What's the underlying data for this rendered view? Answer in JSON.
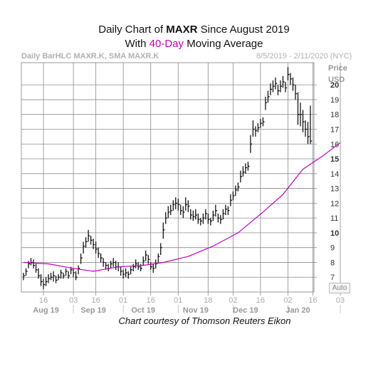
{
  "header": {
    "title_pre": "Daily Chart of ",
    "title_ticker": "MAXR",
    "title_post": " Since August 2019",
    "subtitle_pre": "With ",
    "subtitle_highlight": "40-Day",
    "subtitle_post": " Moving Average",
    "highlight_color": "#c000c0"
  },
  "meta": {
    "left": "Daily BarHLC MAXR.K, SMA MAXR.K",
    "right": "8/5/2019 - 2/11/2020 (NYC)"
  },
  "axis": {
    "price_label": "Price",
    "currency_label": "USD",
    "auto_label": "Auto"
  },
  "credit": "Chart courtesy of Thomson Reuters Eikon",
  "chart_data": {
    "type": "bar",
    "ylim": [
      6,
      21.5
    ],
    "y_ticks": [
      7,
      8,
      9,
      10,
      11,
      12,
      13,
      14,
      15,
      16,
      17,
      18,
      19,
      20
    ],
    "y_bold_ticks": [
      10,
      15,
      20
    ],
    "x_day_ticks": [
      {
        "label": "16",
        "index": 8
      },
      {
        "label": "03",
        "index": 20
      },
      {
        "label": "16",
        "index": 29
      },
      {
        "label": "01",
        "index": 40
      },
      {
        "label": "16",
        "index": 51
      },
      {
        "label": "01",
        "index": 62
      },
      {
        "label": "18",
        "index": 74
      },
      {
        "label": "02",
        "index": 84
      },
      {
        "label": "16",
        "index": 95
      },
      {
        "label": "02",
        "index": 106
      },
      {
        "label": "16",
        "index": 116
      },
      {
        "label": "03",
        "index": 127
      }
    ],
    "x_month_labels": [
      {
        "label": "Aug 19",
        "index": 9
      },
      {
        "label": "Sep 19",
        "index": 28
      },
      {
        "label": "Oct 19",
        "index": 48
      },
      {
        "label": "Nov 19",
        "index": 69
      },
      {
        "label": "Dec 19",
        "index": 89
      },
      {
        "label": "Jan 20",
        "index": 110
      }
    ],
    "month_separators": [
      20,
      40,
      62,
      84,
      106,
      127
    ],
    "series": [
      {
        "name": "MAXR.K",
        "style": "HLC bars",
        "high": [
          7.3,
          7.6,
          8.1,
          8.3,
          8.2,
          7.9,
          7.6,
          7.2,
          6.9,
          7.0,
          7.2,
          7.3,
          7.4,
          7.1,
          7.2,
          7.5,
          7.3,
          7.6,
          7.4,
          7.7,
          7.6,
          7.4,
          7.8,
          8.6,
          9.4,
          9.7,
          10.2,
          9.8,
          9.6,
          9.4,
          9.0,
          8.6,
          8.3,
          8.0,
          7.9,
          8.1,
          8.3,
          8.1,
          8.0,
          7.7,
          7.5,
          7.6,
          7.4,
          7.7,
          7.9,
          8.2,
          8.0,
          7.9,
          8.4,
          8.8,
          8.5,
          8.0,
          7.9,
          8.2,
          8.6,
          9.3,
          10.7,
          11.4,
          11.8,
          11.9,
          12.2,
          12.4,
          12.3,
          11.9,
          11.8,
          12.4,
          12.2,
          11.6,
          11.5,
          11.6,
          11.3,
          11.0,
          11.3,
          11.6,
          11.3,
          11.0,
          11.5,
          11.9,
          11.3,
          11.2,
          11.6,
          11.9,
          11.8,
          12.6,
          12.8,
          13.2,
          13.4,
          14.2,
          14.5,
          14.7,
          14.8,
          16.6,
          17.6,
          17.2,
          17.4,
          17.7,
          17.8,
          19.2,
          19.6,
          20.1,
          20.3,
          20.5,
          20.0,
          20.3,
          20.6,
          20.2,
          21.2,
          20.8,
          20.5,
          20.0,
          19.5,
          18.8,
          18.3,
          17.6,
          17.5,
          18.6
        ],
        "low": [
          6.8,
          7.1,
          7.6,
          7.8,
          7.6,
          7.3,
          6.9,
          6.4,
          6.2,
          6.4,
          6.6,
          6.8,
          6.7,
          6.6,
          6.8,
          6.9,
          6.9,
          7.1,
          6.9,
          7.2,
          7.0,
          6.8,
          7.2,
          7.9,
          8.6,
          9.0,
          9.4,
          9.2,
          8.9,
          8.6,
          8.3,
          8.0,
          7.7,
          7.5,
          7.4,
          7.6,
          7.7,
          7.5,
          7.4,
          7.1,
          6.9,
          7.0,
          6.9,
          7.2,
          7.4,
          7.6,
          7.5,
          7.4,
          7.8,
          8.1,
          7.9,
          7.5,
          7.3,
          7.6,
          8.0,
          8.5,
          9.6,
          10.6,
          11.0,
          11.2,
          11.5,
          11.6,
          11.5,
          11.2,
          11.0,
          11.5,
          11.4,
          10.9,
          10.8,
          10.9,
          10.6,
          10.5,
          10.6,
          10.9,
          10.6,
          10.5,
          10.8,
          11.1,
          10.7,
          10.6,
          10.9,
          11.2,
          11.2,
          11.8,
          12.2,
          12.5,
          12.8,
          13.4,
          13.8,
          14.0,
          14.2,
          15.4,
          16.5,
          16.5,
          16.8,
          17.1,
          17.2,
          18.3,
          18.8,
          19.3,
          19.5,
          19.7,
          19.3,
          19.5,
          19.8,
          19.5,
          20.3,
          20.0,
          19.6,
          19.0,
          17.3,
          17.2,
          16.8,
          16.5,
          16.0,
          16.0
        ],
        "close": [
          7.1,
          7.4,
          7.9,
          8.0,
          7.8,
          7.5,
          7.1,
          6.7,
          6.5,
          6.7,
          6.9,
          7.0,
          7.1,
          6.8,
          7.0,
          7.3,
          7.1,
          7.4,
          7.1,
          7.5,
          7.3,
          7.0,
          7.6,
          8.3,
          9.1,
          9.4,
          9.8,
          9.5,
          9.2,
          8.9,
          8.6,
          8.3,
          8.0,
          7.8,
          7.6,
          7.9,
          8.0,
          7.7,
          7.7,
          7.4,
          7.2,
          7.3,
          7.2,
          7.5,
          7.7,
          7.9,
          7.7,
          7.6,
          8.1,
          8.5,
          8.2,
          7.7,
          7.6,
          7.9,
          8.4,
          9.0,
          10.2,
          11.0,
          11.4,
          11.5,
          11.9,
          12.0,
          11.9,
          11.5,
          11.4,
          11.9,
          11.8,
          11.2,
          11.1,
          11.2,
          10.9,
          10.8,
          11.0,
          11.3,
          10.9,
          10.8,
          11.2,
          11.5,
          11.0,
          10.9,
          11.3,
          11.6,
          11.5,
          12.2,
          12.5,
          12.9,
          13.1,
          13.8,
          14.1,
          14.4,
          14.5,
          16.0,
          17.0,
          16.9,
          17.1,
          17.4,
          17.5,
          18.8,
          19.2,
          19.7,
          19.9,
          20.1,
          19.6,
          19.9,
          20.2,
          19.8,
          20.7,
          20.4,
          20.0,
          19.4,
          18.0,
          18.0,
          17.5,
          17.0,
          16.5,
          16.2
        ]
      },
      {
        "name": "SMA 40",
        "color": "#c000c0",
        "points": [
          {
            "index": 0,
            "value": 8.0
          },
          {
            "index": 10,
            "value": 7.9
          },
          {
            "index": 20,
            "value": 7.6
          },
          {
            "index": 28,
            "value": 7.4
          },
          {
            "index": 38,
            "value": 7.7
          },
          {
            "index": 48,
            "value": 7.8
          },
          {
            "index": 56,
            "value": 8.0
          },
          {
            "index": 66,
            "value": 8.4
          },
          {
            "index": 76,
            "value": 9.1
          },
          {
            "index": 86,
            "value": 10.0
          },
          {
            "index": 96,
            "value": 11.4
          },
          {
            "index": 104,
            "value": 12.6
          },
          {
            "index": 112,
            "value": 14.3
          },
          {
            "index": 120,
            "value": 15.2
          },
          {
            "index": 127,
            "value": 16.1
          }
        ]
      }
    ]
  }
}
